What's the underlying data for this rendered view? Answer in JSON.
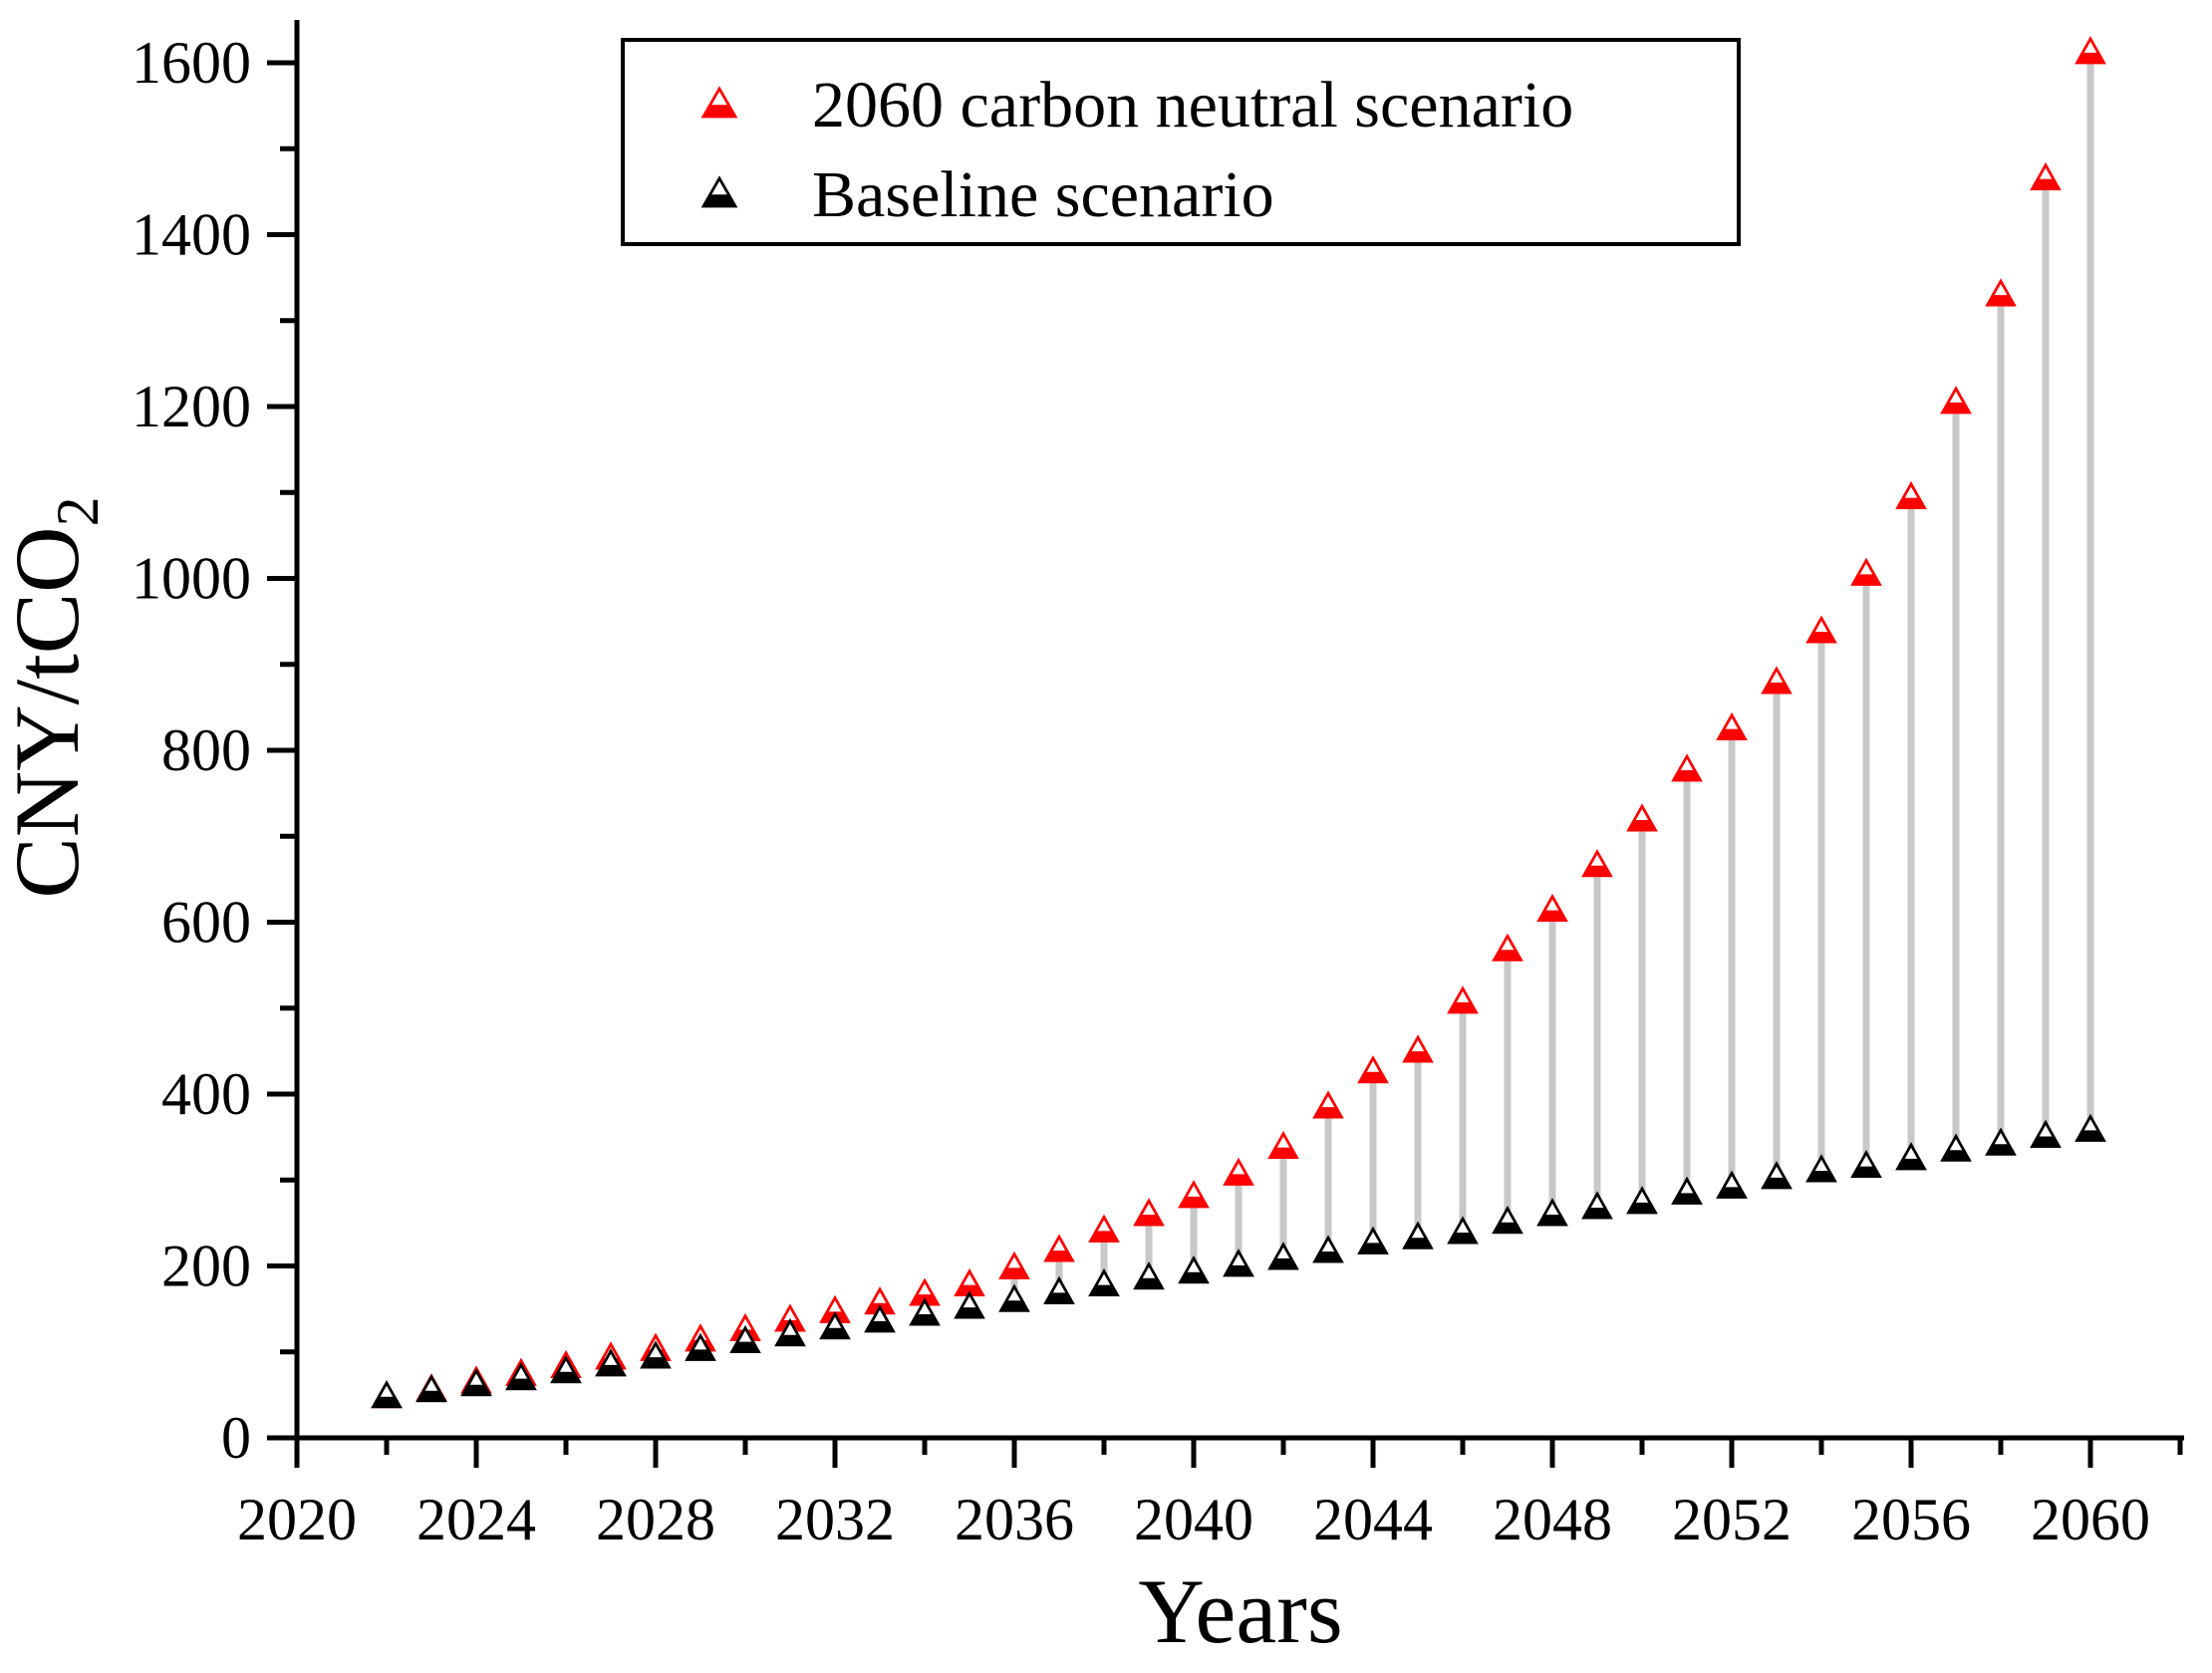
{
  "figure": {
    "background": "#ffffff",
    "accent_red": "#ff0000",
    "accent_black": "#000000",
    "drop_line_color": "#c8c8c8"
  },
  "axes": {
    "x": {
      "title": "Years",
      "major_ticks": [
        2020,
        2024,
        2028,
        2032,
        2036,
        2040,
        2044,
        2048,
        2052,
        2056,
        2060
      ],
      "minor_ticks": [
        2022,
        2026,
        2030,
        2034,
        2038,
        2042,
        2046,
        2050,
        2054,
        2058,
        2062
      ]
    },
    "y": {
      "title_main": "CNY/tCO",
      "title_sub": "2",
      "major_ticks": [
        0,
        200,
        400,
        600,
        800,
        1000,
        1200,
        1400,
        1600
      ],
      "minor_ticks": [
        100,
        300,
        500,
        700,
        900,
        1100,
        1300,
        1500
      ]
    }
  },
  "legend": {
    "items": [
      {
        "label": "2060 carbon neutral scenario",
        "color": "#ff0000",
        "marker": "triangle-up-half-filled"
      },
      {
        "label": "Baseline scenario",
        "color": "#000000",
        "marker": "triangle-up-half-filled"
      }
    ]
  },
  "chart_data": {
    "type": "scatter",
    "title": "",
    "xlabel": "Years",
    "ylabel": "CNY/tCO2",
    "xlim": [
      2020,
      2062
    ],
    "ylim": [
      0,
      1650
    ],
    "grid": false,
    "legend_position": "top-inside",
    "marker": "triangle-up-bottom-half-filled",
    "drop_lines": {
      "show": true,
      "color": "#c8c8c8",
      "connects": "baseline-to-carbon-neutral per year"
    },
    "x": [
      2022,
      2023,
      2024,
      2025,
      2026,
      2027,
      2028,
      2029,
      2030,
      2031,
      2032,
      2033,
      2034,
      2035,
      2036,
      2037,
      2038,
      2039,
      2040,
      2041,
      2042,
      2043,
      2044,
      2045,
      2046,
      2047,
      2048,
      2049,
      2050,
      2051,
      2052,
      2053,
      2054,
      2055,
      2056,
      2057,
      2058,
      2059,
      2060
    ],
    "series": [
      {
        "name": "2060 carbon neutral scenario",
        "color": "#ff0000",
        "values": [
          50,
          58,
          67,
          76,
          85,
          95,
          105,
          116,
          128,
          139,
          149,
          159,
          169,
          180,
          200,
          220,
          243,
          262,
          283,
          309,
          340,
          387,
          428,
          452,
          509,
          570,
          616,
          668,
          721,
          779,
          827,
          881,
          940,
          1007,
          1096,
          1207,
          1332,
          1467,
          1614
        ]
      },
      {
        "name": "Baseline scenario",
        "color": "#000000",
        "values": [
          50,
          57,
          64,
          71,
          79,
          87,
          96,
          105,
          114,
          122,
          130,
          138,
          146,
          154,
          162,
          171,
          180,
          188,
          195,
          203,
          211,
          219,
          229,
          235,
          241,
          253,
          262,
          270,
          276,
          287,
          294,
          305,
          313,
          318,
          327,
          337,
          344,
          353,
          360
        ]
      }
    ]
  }
}
